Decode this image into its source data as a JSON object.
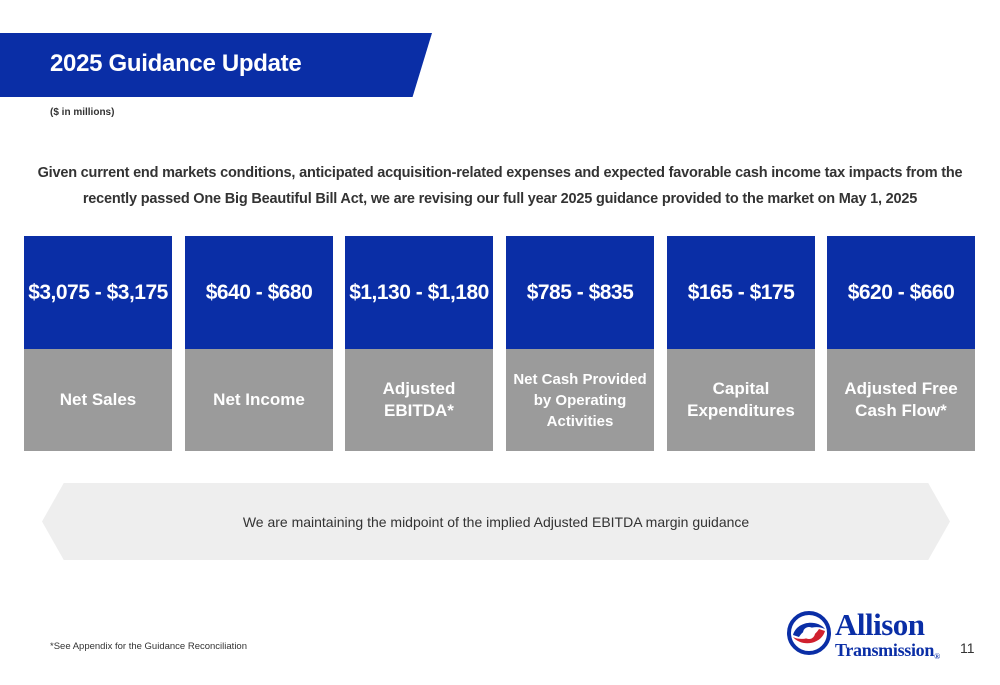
{
  "header": {
    "title": "2025 Guidance Update",
    "units_note": "($ in millions)"
  },
  "intro": "Given current end markets conditions, anticipated acquisition-related expenses and expected favorable cash income tax impacts from the recently passed One Big Beautiful Bill Act, we are revising our full year 2025 guidance provided to the market on May 1, 2025",
  "cards": [
    {
      "value": "$3,075 - $3,175",
      "label": "Net Sales"
    },
    {
      "value": "$640 - $680",
      "label": "Net Income"
    },
    {
      "value": "$1,130 - $1,180",
      "label": "Adjusted\nEBITDA*"
    },
    {
      "value": "$785 - $835",
      "label": "Net Cash Provided\nby Operating\nActivities"
    },
    {
      "value": "$165 - $175",
      "label": "Capital\nExpenditures"
    },
    {
      "value": "$620 - $660",
      "label": "Adjusted Free\nCash Flow*"
    }
  ],
  "banner": "We are maintaining the midpoint of the implied Adjusted EBITDA margin guidance",
  "footnote": "*See Appendix for the Guidance Reconciliation",
  "logo": {
    "line1": "Allison",
    "line2": "Transmission",
    "mark": "®"
  },
  "page_number": "11",
  "colors": {
    "brand_blue": "#0a2ea6",
    "label_gray": "#9b9b9b",
    "banner_gray": "#eeeeee",
    "logo_red": "#d0202e"
  }
}
